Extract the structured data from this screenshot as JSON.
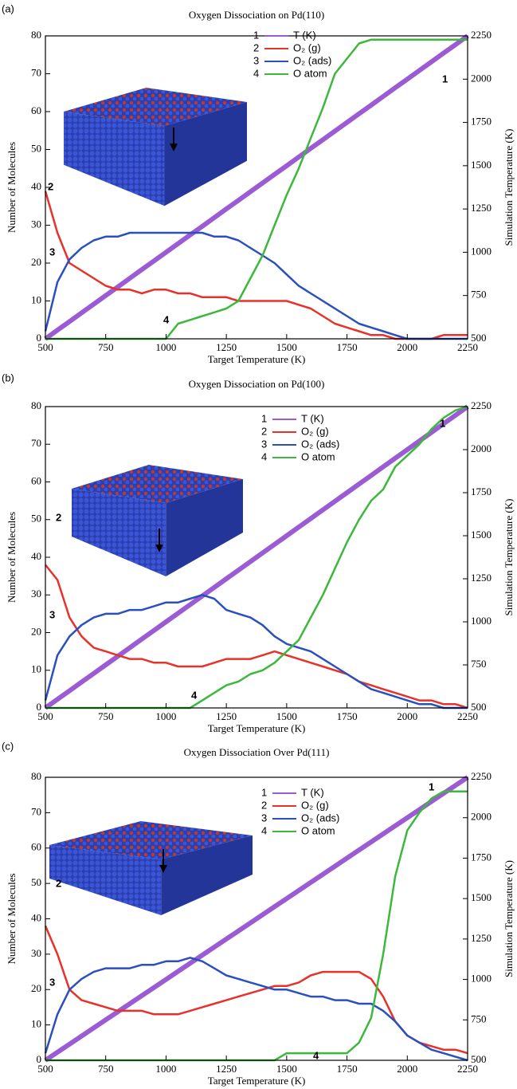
{
  "chart_data": [
    {
      "type": "line",
      "panel_label": "(a)",
      "title": "Oxygen Dissociation on Pd(110)",
      "xlabel": "Target Temperature (K)",
      "ylabel": "Number of Molecules",
      "y2label": "Simulation Temperature (K)",
      "xlim": [
        500,
        2250
      ],
      "xticks": [
        500,
        750,
        1000,
        1250,
        1500,
        1750,
        2000,
        2250
      ],
      "ylim": [
        0,
        80
      ],
      "yticks": [
        0,
        10,
        20,
        30,
        40,
        50,
        60,
        70,
        80
      ],
      "y2lim": [
        500,
        2250
      ],
      "y2ticks": [
        500,
        750,
        1000,
        1250,
        1500,
        1750,
        2000,
        2250
      ],
      "x": [
        500,
        550,
        600,
        650,
        700,
        750,
        800,
        850,
        900,
        950,
        1000,
        1050,
        1100,
        1150,
        1200,
        1250,
        1300,
        1350,
        1400,
        1450,
        1500,
        1550,
        1600,
        1650,
        1700,
        1750,
        1800,
        1850,
        1900,
        1950,
        2000,
        2050,
        2100,
        2150,
        2200,
        2250
      ],
      "series": [
        {
          "label": "1",
          "name": "T (K)",
          "color": "#9b5bd4",
          "axis": "y2",
          "values": [
            500,
            550,
            600,
            650,
            700,
            750,
            800,
            850,
            900,
            950,
            1000,
            1050,
            1100,
            1150,
            1200,
            1250,
            1300,
            1350,
            1400,
            1450,
            1500,
            1550,
            1600,
            1650,
            1700,
            1750,
            1800,
            1850,
            1900,
            1950,
            2000,
            2050,
            2100,
            2150,
            2200,
            2250
          ]
        },
        {
          "label": "2",
          "name": "O₂ (g)",
          "color": "#e8312a",
          "values": [
            39,
            28,
            20,
            18,
            16,
            14,
            13,
            13,
            12,
            13,
            13,
            12,
            12,
            11,
            11,
            11,
            10,
            10,
            10,
            10,
            10,
            9,
            8,
            6,
            4,
            3,
            2,
            1,
            1,
            0,
            0,
            0,
            0,
            1,
            1,
            1
          ]
        },
        {
          "label": "3",
          "name": "O₂ (ads)",
          "color": "#2a4fbf",
          "values": [
            2,
            15,
            21,
            24,
            26,
            27,
            27,
            28,
            28,
            28,
            28,
            28,
            28,
            28,
            27,
            27,
            26,
            24,
            22,
            20,
            17,
            14,
            12,
            10,
            8,
            6,
            4,
            3,
            2,
            1,
            0,
            0,
            0,
            0,
            0,
            0
          ]
        },
        {
          "label": "4",
          "name": "O atom",
          "color": "#3cb83c",
          "values": [
            0,
            0,
            0,
            0,
            0,
            0,
            0,
            0,
            0,
            0,
            0,
            4,
            5,
            6,
            7,
            8,
            10,
            16,
            22,
            30,
            38,
            45,
            53,
            61,
            70,
            74,
            78,
            79,
            79,
            79,
            79,
            79,
            79,
            79,
            79,
            79
          ]
        }
      ]
    },
    {
      "type": "line",
      "panel_label": "(b)",
      "title": "Oxygen Dissociation on Pd(100)",
      "xlabel": "Target Temperature (K)",
      "ylabel": "Number of Molecules",
      "y2label": "Simulation Temperature (K)",
      "xlim": [
        500,
        2250
      ],
      "xticks": [
        500,
        750,
        1000,
        1250,
        1500,
        1750,
        2000,
        2250
      ],
      "ylim": [
        0,
        80
      ],
      "yticks": [
        0,
        10,
        20,
        30,
        40,
        50,
        60,
        70,
        80
      ],
      "y2lim": [
        500,
        2250
      ],
      "y2ticks": [
        500,
        750,
        1000,
        1250,
        1500,
        1750,
        2000,
        2250
      ],
      "x": [
        500,
        550,
        600,
        650,
        700,
        750,
        800,
        850,
        900,
        950,
        1000,
        1050,
        1100,
        1150,
        1200,
        1250,
        1300,
        1350,
        1400,
        1450,
        1500,
        1550,
        1600,
        1650,
        1700,
        1750,
        1800,
        1850,
        1900,
        1950,
        2000,
        2050,
        2100,
        2150,
        2200,
        2250
      ],
      "series": [
        {
          "label": "1",
          "name": "T (K)",
          "color": "#9b5bd4",
          "axis": "y2",
          "values": [
            500,
            550,
            600,
            650,
            700,
            750,
            800,
            850,
            900,
            950,
            1000,
            1050,
            1100,
            1150,
            1200,
            1250,
            1300,
            1350,
            1400,
            1450,
            1500,
            1550,
            1600,
            1650,
            1700,
            1750,
            1800,
            1850,
            1900,
            1950,
            2000,
            2050,
            2100,
            2150,
            2200,
            2250
          ]
        },
        {
          "label": "2",
          "name": "O₂ (g)",
          "color": "#e8312a",
          "values": [
            38,
            34,
            24,
            19,
            16,
            15,
            14,
            13,
            13,
            12,
            12,
            11,
            11,
            11,
            12,
            13,
            13,
            13,
            14,
            15,
            14,
            13,
            12,
            11,
            10,
            9,
            7,
            6,
            5,
            4,
            3,
            2,
            2,
            1,
            1,
            0
          ]
        },
        {
          "label": "3",
          "name": "O₂ (ads)",
          "color": "#2a4fbf",
          "values": [
            2,
            14,
            19,
            22,
            24,
            25,
            25,
            26,
            26,
            27,
            28,
            28,
            29,
            30,
            29,
            26,
            25,
            24,
            22,
            19,
            17,
            16,
            15,
            13,
            11,
            9,
            7,
            5,
            4,
            3,
            2,
            1,
            1,
            0,
            0,
            0
          ]
        },
        {
          "label": "4",
          "name": "O atom",
          "color": "#3cb83c",
          "values": [
            0,
            0,
            0,
            0,
            0,
            0,
            0,
            0,
            0,
            0,
            0,
            0,
            0,
            2,
            4,
            6,
            7,
            9,
            10,
            12,
            15,
            18,
            24,
            30,
            37,
            44,
            50,
            55,
            58,
            64,
            67,
            70,
            74,
            77,
            79,
            80
          ]
        }
      ]
    },
    {
      "type": "line",
      "panel_label": "(c)",
      "title": "Oxygen Dissociation Over Pd(111)",
      "xlabel": "Target Temperature (K)",
      "ylabel": "Number of Molecules",
      "y2label": "Simulation Temperature (K)",
      "xlim": [
        500,
        2250
      ],
      "xticks": [
        500,
        750,
        1000,
        1250,
        1500,
        1750,
        2000,
        2250
      ],
      "ylim": [
        0,
        80
      ],
      "yticks": [
        0,
        10,
        20,
        30,
        40,
        50,
        60,
        70,
        80
      ],
      "y2lim": [
        500,
        2250
      ],
      "y2ticks": [
        500,
        750,
        1000,
        1250,
        1500,
        1750,
        2000,
        2250
      ],
      "x": [
        500,
        550,
        600,
        650,
        700,
        750,
        800,
        850,
        900,
        950,
        1000,
        1050,
        1100,
        1150,
        1200,
        1250,
        1300,
        1350,
        1400,
        1450,
        1500,
        1550,
        1600,
        1650,
        1700,
        1750,
        1800,
        1850,
        1900,
        1950,
        2000,
        2050,
        2100,
        2150,
        2200,
        2250
      ],
      "series": [
        {
          "label": "1",
          "name": "T (K)",
          "color": "#9b5bd4",
          "axis": "y2",
          "values": [
            500,
            550,
            600,
            650,
            700,
            750,
            800,
            850,
            900,
            950,
            1000,
            1050,
            1100,
            1150,
            1200,
            1250,
            1300,
            1350,
            1400,
            1450,
            1500,
            1550,
            1600,
            1650,
            1700,
            1750,
            1800,
            1850,
            1900,
            1950,
            2000,
            2050,
            2100,
            2150,
            2200,
            2250
          ]
        },
        {
          "label": "2",
          "name": "O₂ (g)",
          "color": "#e8312a",
          "values": [
            38,
            30,
            20,
            17,
            16,
            15,
            14,
            14,
            14,
            13,
            13,
            13,
            14,
            15,
            16,
            17,
            18,
            19,
            20,
            21,
            21,
            22,
            24,
            25,
            25,
            25,
            25,
            23,
            18,
            11,
            7,
            5,
            4,
            3,
            3,
            2
          ]
        },
        {
          "label": "3",
          "name": "O₂ (ads)",
          "color": "#2a4fbf",
          "values": [
            2,
            13,
            20,
            23,
            25,
            26,
            26,
            26,
            27,
            27,
            28,
            28,
            29,
            28,
            26,
            24,
            23,
            22,
            21,
            20,
            20,
            19,
            18,
            18,
            17,
            17,
            16,
            16,
            14,
            11,
            7,
            5,
            3,
            2,
            1,
            0
          ]
        },
        {
          "label": "4",
          "name": "O atom",
          "color": "#3cb83c",
          "values": [
            0,
            0,
            0,
            0,
            0,
            0,
            0,
            0,
            0,
            0,
            0,
            0,
            0,
            0,
            0,
            0,
            0,
            0,
            0,
            0,
            2,
            2,
            2,
            2,
            2,
            2,
            5,
            12,
            30,
            52,
            65,
            70,
            74,
            76,
            76,
            76
          ]
        }
      ]
    }
  ]
}
